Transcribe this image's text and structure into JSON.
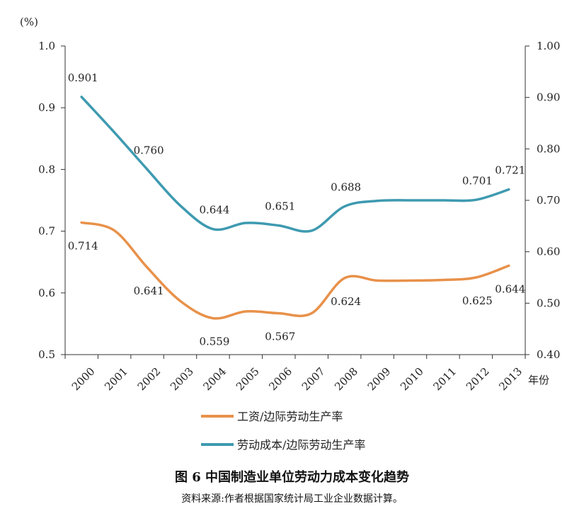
{
  "chart_data": {
    "type": "line",
    "left_axis_unit": "(%)",
    "x_axis_label": "年份",
    "categories": [
      "2000",
      "2001",
      "2002",
      "2003",
      "2004",
      "2005",
      "2006",
      "2007",
      "2008",
      "2009",
      "2010",
      "2011",
      "2012",
      "2013"
    ],
    "y_left": {
      "range": [
        0.5,
        1.0
      ],
      "ticks": [
        "0.5",
        "0.6",
        "0.7",
        "0.8",
        "0.9",
        "1.0"
      ],
      "tick_values": [
        0.5,
        0.6,
        0.7,
        0.8,
        0.9,
        1.0
      ]
    },
    "y_right": {
      "range": [
        0.4,
        1.0
      ],
      "ticks": [
        "0.40",
        "0.50",
        "0.60",
        "0.70",
        "0.80",
        "0.90",
        "1.00"
      ],
      "tick_values": [
        0.4,
        0.5,
        0.6,
        0.7,
        0.8,
        0.9,
        1.0
      ]
    },
    "series": [
      {
        "name": "工资/边际劳动生产率",
        "axis": "left",
        "color": "#E8914A",
        "values": [
          0.714,
          0.701,
          0.641,
          0.587,
          0.559,
          0.57,
          0.567,
          0.567,
          0.624,
          0.62,
          0.62,
          0.621,
          0.625,
          0.644
        ],
        "labels": [
          {
            "index": 0,
            "text": "0.714",
            "pos": "below"
          },
          {
            "index": 2,
            "text": "0.641",
            "pos": "below"
          },
          {
            "index": 4,
            "text": "0.559",
            "pos": "below"
          },
          {
            "index": 6,
            "text": "0.567",
            "pos": "below"
          },
          {
            "index": 8,
            "text": "0.624",
            "pos": "below"
          },
          {
            "index": 12,
            "text": "0.625",
            "pos": "below"
          },
          {
            "index": 13,
            "text": "0.644",
            "pos": "below"
          }
        ]
      },
      {
        "name": "劳动成本/边际劳动生产率",
        "axis": "right",
        "color": "#3E9AB0",
        "values": [
          0.901,
          0.832,
          0.76,
          0.69,
          0.644,
          0.656,
          0.651,
          0.641,
          0.688,
          0.699,
          0.7,
          0.7,
          0.701,
          0.721
        ],
        "labels": [
          {
            "index": 0,
            "text": "0.901",
            "pos": "above"
          },
          {
            "index": 2,
            "text": "0.760",
            "pos": "above"
          },
          {
            "index": 4,
            "text": "0.644",
            "pos": "above"
          },
          {
            "index": 6,
            "text": "0.651",
            "pos": "above"
          },
          {
            "index": 8,
            "text": "0.688",
            "pos": "above"
          },
          {
            "index": 12,
            "text": "0.701",
            "pos": "above"
          },
          {
            "index": 13,
            "text": "0.721",
            "pos": "above"
          }
        ]
      }
    ],
    "legend_placement": "bottom"
  },
  "caption": {
    "title": "图 6  中国制造业单位劳动力成本变化趋势",
    "source": "资料来源:作者根据国家统计局工业企业数据计算。"
  }
}
